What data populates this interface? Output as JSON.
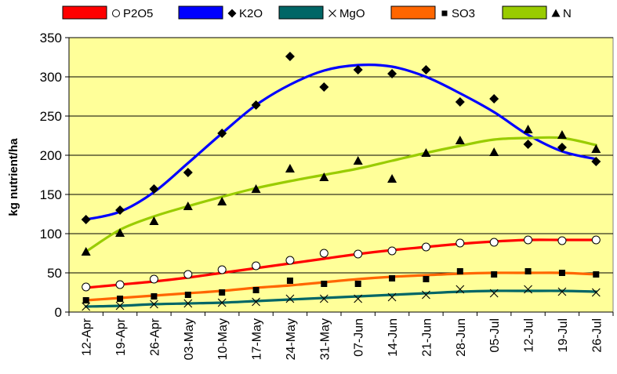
{
  "chart_data": {
    "type": "scatter",
    "title": "",
    "xlabel": "",
    "ylabel": "kg nutrient/ha",
    "categories": [
      "12-Apr",
      "19-Apr",
      "26-Apr",
      "03-May",
      "10-May",
      "17-May",
      "24-May",
      "31-May",
      "07-Jun",
      "14-Jun",
      "21-Jun",
      "28-Jun",
      "05-Jul",
      "12-Jul",
      "19-Jul",
      "26-Jul"
    ],
    "ylim": [
      0,
      350
    ],
    "yticks": [
      0,
      50,
      100,
      150,
      200,
      250,
      300,
      350
    ],
    "grid": "horizontal",
    "legend_position": "top",
    "plot_background": "#ffff99",
    "series": [
      {
        "name": "P2O5",
        "marker": "circle-open",
        "line_color": "#ff0000",
        "values": [
          32,
          35,
          42,
          48,
          54,
          59,
          66,
          75,
          74,
          78,
          83,
          88,
          89,
          92,
          91,
          92
        ],
        "trend": [
          31,
          35,
          39,
          44,
          50,
          56,
          62,
          68,
          74,
          79,
          83,
          87,
          90,
          92,
          92,
          92
        ]
      },
      {
        "name": "K2O",
        "marker": "diamond",
        "line_color": "#0000ff",
        "values": [
          118,
          130,
          157,
          178,
          228,
          264,
          326,
          287,
          309,
          304,
          309,
          268,
          272,
          214,
          210,
          192
        ],
        "trend": [
          118,
          128,
          153,
          190,
          228,
          264,
          290,
          308,
          315,
          313,
          300,
          279,
          255,
          226,
          205,
          195
        ]
      },
      {
        "name": "MgO",
        "marker": "x",
        "line_color": "#006666",
        "values": [
          7,
          8,
          10,
          11,
          12,
          13,
          17,
          17,
          17,
          19,
          22,
          29,
          24,
          29,
          26,
          25
        ],
        "trend": [
          7,
          8,
          10,
          11,
          12,
          14,
          16,
          18,
          20,
          22,
          24,
          26,
          27,
          27,
          27,
          26
        ]
      },
      {
        "name": "SO3",
        "marker": "square",
        "line_color": "#ff6600",
        "values": [
          15,
          17,
          20,
          22,
          25,
          28,
          40,
          36,
          36,
          43,
          42,
          52,
          48,
          52,
          50,
          48
        ],
        "trend": [
          15,
          18,
          21,
          24,
          27,
          31,
          34,
          38,
          42,
          45,
          47,
          49,
          50,
          50,
          50,
          48
        ]
      },
      {
        "name": "N",
        "marker": "triangle",
        "line_color": "#99cc00",
        "values": [
          77,
          101,
          116,
          135,
          141,
          157,
          183,
          172,
          193,
          170,
          203,
          219,
          204,
          233,
          226,
          208
        ],
        "trend": [
          77,
          105,
          122,
          135,
          147,
          158,
          167,
          175,
          183,
          193,
          203,
          212,
          220,
          222,
          222,
          213
        ]
      }
    ]
  }
}
